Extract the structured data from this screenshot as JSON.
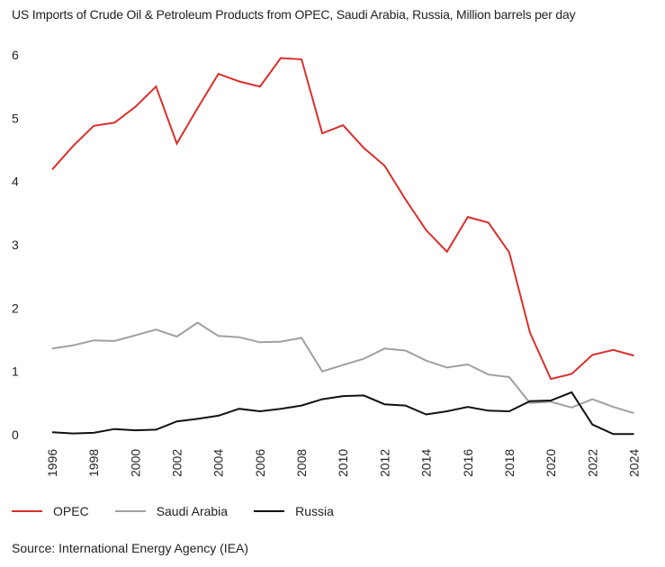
{
  "chart_data": {
    "type": "line",
    "title": "US Imports of Crude Oil & Petroleum Products from OPEC, Saudi Arabia, Russia, Million barrels per day",
    "xlabel": "",
    "ylabel": "",
    "x": [
      1996,
      1997,
      1998,
      1999,
      2000,
      2001,
      2002,
      2003,
      2004,
      2005,
      2006,
      2007,
      2008,
      2009,
      2010,
      2011,
      2012,
      2013,
      2014,
      2015,
      2016,
      2017,
      2018,
      2019,
      2020,
      2021,
      2022,
      2023,
      2024
    ],
    "x_ticks": [
      "1996",
      "1998",
      "2000",
      "2002",
      "2004",
      "2006",
      "2008",
      "2010",
      "2012",
      "2014",
      "2016",
      "2018",
      "2020",
      "2022",
      "2024"
    ],
    "y_ticks": [
      "0",
      "1",
      "2",
      "3",
      "4",
      "5",
      "6"
    ],
    "xlim": [
      1996,
      2024.5
    ],
    "ylim": [
      0,
      6
    ],
    "grid": false,
    "legend_position": "bottom-left",
    "series": [
      {
        "name": "OPEC",
        "color": "#d9302c",
        "values": [
          4.19,
          4.56,
          4.88,
          4.93,
          5.18,
          5.5,
          4.6,
          5.16,
          5.7,
          5.58,
          5.5,
          5.95,
          5.93,
          4.76,
          4.89,
          4.53,
          4.25,
          3.72,
          3.23,
          2.89,
          3.44,
          3.35,
          2.88,
          1.61,
          0.88,
          0.96,
          1.26,
          1.34,
          1.25
        ]
      },
      {
        "name": "Saudi Arabia",
        "color": "#a0a0a0",
        "values": [
          1.36,
          1.41,
          1.49,
          1.48,
          1.57,
          1.66,
          1.55,
          1.77,
          1.56,
          1.54,
          1.46,
          1.47,
          1.53,
          1.0,
          1.1,
          1.2,
          1.36,
          1.33,
          1.17,
          1.06,
          1.11,
          0.95,
          0.91,
          0.5,
          0.52,
          0.43,
          0.56,
          0.44,
          0.34
        ]
      },
      {
        "name": "Russia",
        "color": "#111111",
        "values": [
          0.04,
          0.02,
          0.03,
          0.09,
          0.07,
          0.08,
          0.21,
          0.25,
          0.3,
          0.41,
          0.37,
          0.41,
          0.46,
          0.56,
          0.61,
          0.62,
          0.48,
          0.46,
          0.32,
          0.37,
          0.44,
          0.38,
          0.37,
          0.53,
          0.54,
          0.67,
          0.16,
          0.01,
          0.01
        ]
      }
    ]
  },
  "source": "Source: International Energy Agency (IEA)"
}
